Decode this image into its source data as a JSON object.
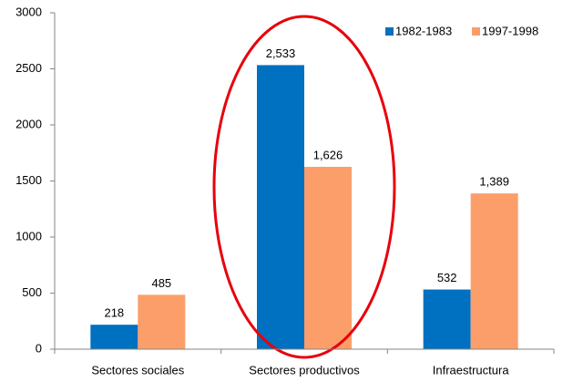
{
  "chart_data": {
    "type": "bar",
    "categories": [
      "Sectores sociales",
      "Sectores productivos",
      "Infraestructura"
    ],
    "series": [
      {
        "name": "1982-1983",
        "color": "#0070c0",
        "values": [
          218,
          2533,
          532
        ],
        "value_labels": [
          "218",
          "2,533",
          "532"
        ]
      },
      {
        "name": "1997-1998",
        "color": "#fb9e6a",
        "values": [
          485,
          1626,
          1389
        ],
        "value_labels": [
          "485",
          "1,626",
          "1,389"
        ]
      }
    ],
    "ylim": [
      0,
      3000
    ],
    "yticks": [
      0,
      500,
      1000,
      1500,
      2000,
      2500,
      3000
    ],
    "grid": false,
    "legend": "top-right"
  }
}
